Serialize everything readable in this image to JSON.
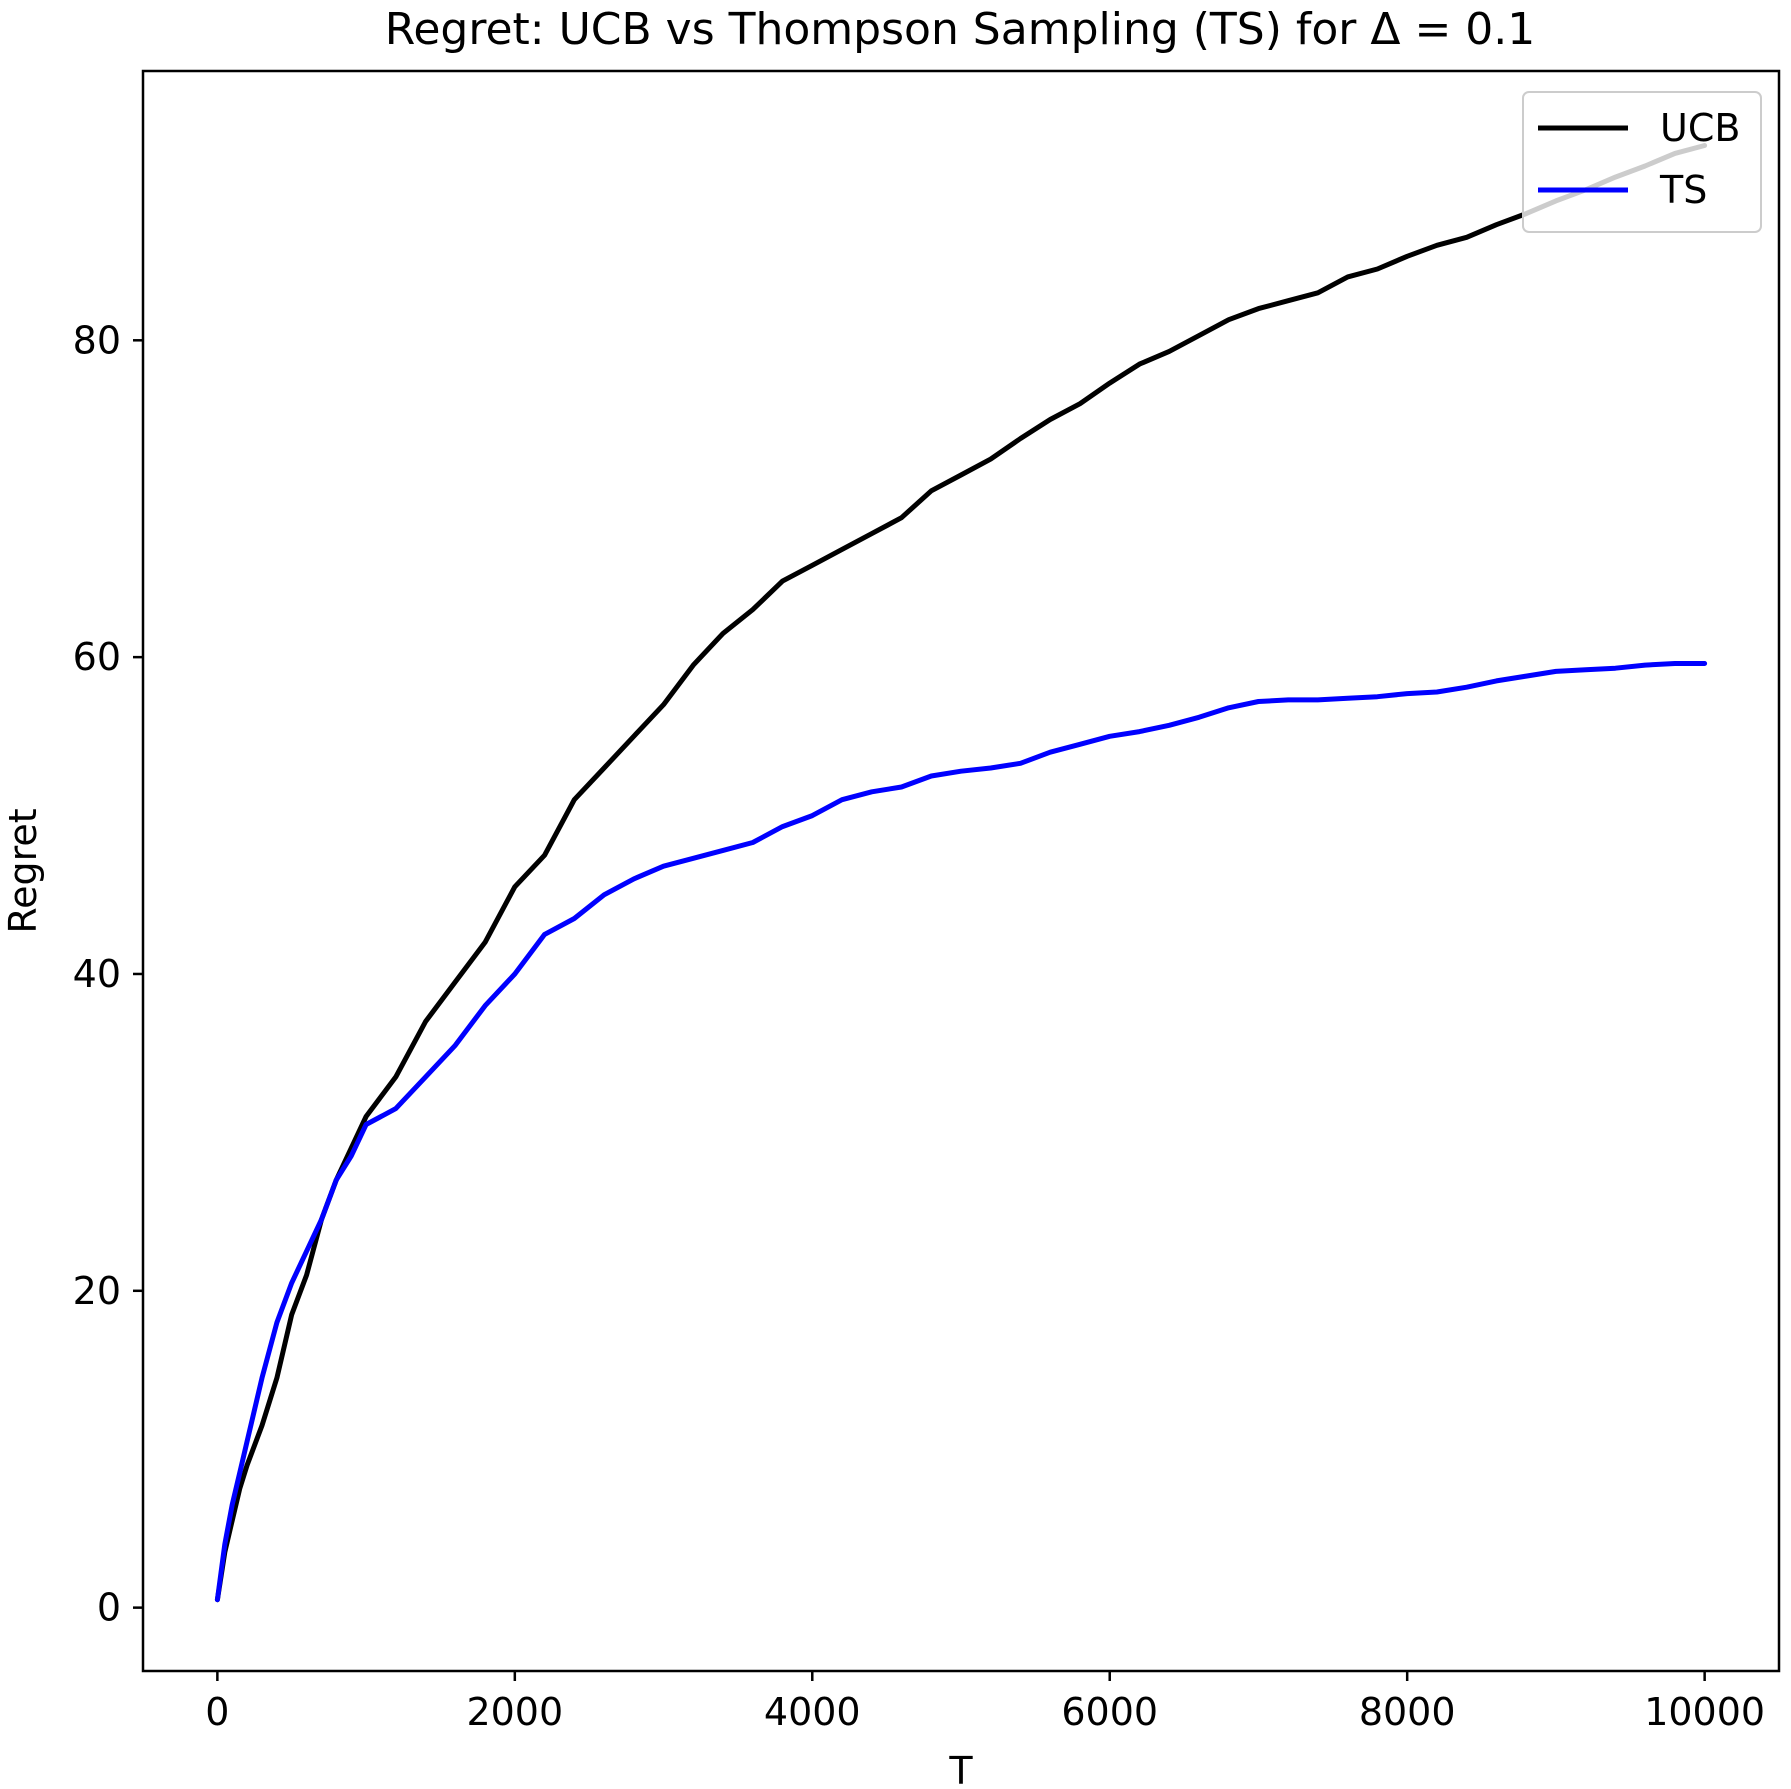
{
  "chart_data": {
    "type": "line",
    "title": "Regret: UCB vs Thompson Sampling (TS) for Δ = 0.1",
    "xlabel": "T",
    "ylabel": "Regret",
    "xlim": [
      -500,
      10500
    ],
    "ylim": [
      -4,
      97
    ],
    "xticks": [
      0,
      2000,
      4000,
      6000,
      8000,
      10000
    ],
    "xtick_labels": [
      "0",
      "2000",
      "4000",
      "6000",
      "8000",
      "10000"
    ],
    "yticks": [
      0,
      20,
      40,
      60,
      80
    ],
    "ytick_labels": [
      "0",
      "20",
      "40",
      "60",
      "80"
    ],
    "grid": false,
    "legend_position": "upper right",
    "series": [
      {
        "name": "UCB",
        "color": "#000000",
        "x": [
          0,
          50,
          100,
          150,
          200,
          300,
          400,
          500,
          600,
          700,
          800,
          900,
          1000,
          1200,
          1400,
          1600,
          1800,
          2000,
          2200,
          2400,
          2600,
          2800,
          3000,
          3200,
          3400,
          3600,
          3800,
          4000,
          4200,
          4400,
          4600,
          4800,
          5000,
          5200,
          5400,
          5600,
          5800,
          6000,
          6200,
          6400,
          6600,
          6800,
          7000,
          7200,
          7400,
          7600,
          7800,
          8000,
          8200,
          8400,
          8600,
          8800,
          9000,
          9200,
          9400,
          9600,
          9800,
          10000
        ],
        "y": [
          0.5,
          3.5,
          5.5,
          7.5,
          9,
          11.5,
          14.5,
          18.5,
          21,
          24.5,
          27,
          29,
          31,
          33.5,
          37,
          39.5,
          42,
          45.5,
          47.5,
          51,
          53,
          55,
          57,
          59.5,
          61.5,
          63,
          64.8,
          65.8,
          66.8,
          67.8,
          68.8,
          70.5,
          71.5,
          72.5,
          73.8,
          75,
          76,
          77.3,
          78.5,
          79.3,
          80.3,
          81.3,
          82,
          82.5,
          83,
          84,
          84.5,
          85.3,
          86,
          86.5,
          87.3,
          88,
          88.8,
          89.5,
          90.3,
          91,
          91.8,
          92.3
        ]
      },
      {
        "name": "TS",
        "color": "#0000ff",
        "x": [
          0,
          50,
          100,
          150,
          200,
          300,
          400,
          500,
          600,
          700,
          800,
          900,
          1000,
          1200,
          1400,
          1600,
          1800,
          2000,
          2200,
          2400,
          2600,
          2800,
          3000,
          3200,
          3400,
          3600,
          3800,
          4000,
          4200,
          4400,
          4600,
          4800,
          5000,
          5200,
          5400,
          5600,
          5800,
          6000,
          6200,
          6400,
          6600,
          6800,
          7000,
          7200,
          7400,
          7600,
          7800,
          8000,
          8200,
          8400,
          8600,
          8800,
          9000,
          9200,
          9400,
          9600,
          9800,
          10000
        ],
        "y": [
          0.5,
          4,
          6.5,
          8.5,
          10.5,
          14.5,
          18,
          20.5,
          22.5,
          24.5,
          27,
          28.5,
          30.5,
          31.5,
          33.5,
          35.5,
          38,
          40,
          42.5,
          43.5,
          45,
          46,
          46.8,
          47.3,
          47.8,
          48.3,
          49.3,
          50,
          51,
          51.5,
          51.8,
          52.5,
          52.8,
          53,
          53.3,
          54,
          54.5,
          55,
          55.3,
          55.7,
          56.2,
          56.8,
          57.2,
          57.3,
          57.3,
          57.4,
          57.5,
          57.7,
          57.8,
          58.1,
          58.5,
          58.8,
          59.1,
          59.2,
          59.3,
          59.5,
          59.6,
          59.6
        ]
      }
    ]
  }
}
